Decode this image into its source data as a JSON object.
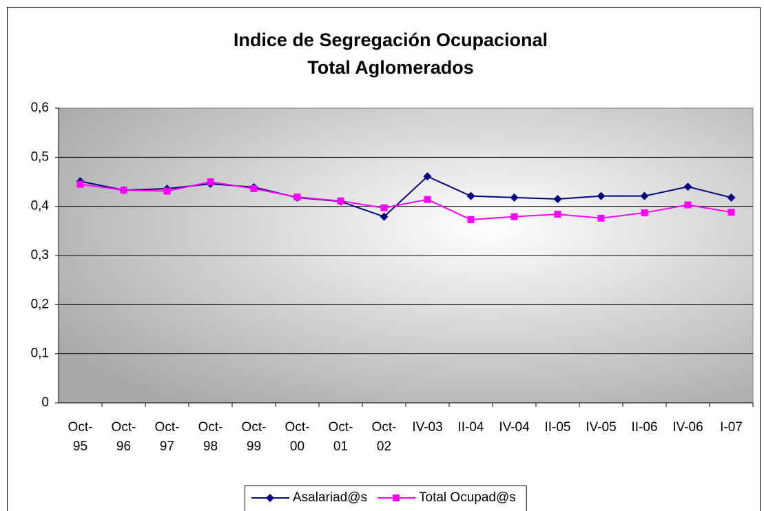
{
  "chart_data": {
    "type": "line",
    "title": "Indice de Segregación Ocupacional",
    "subtitle": "Total Aglomerados",
    "categories": [
      "Oct-95",
      "Oct-96",
      "Oct-97",
      "Oct-98",
      "Oct-99",
      "Oct-00",
      "Oct-01",
      "Oct-02",
      "IV-03",
      "II-04",
      "IV-04",
      "II-05",
      "IV-05",
      "II-06",
      "IV-06",
      "I-07"
    ],
    "series": [
      {
        "name": "Asalariad@s",
        "color": "#000080",
        "marker": "diamond",
        "values": [
          0.451,
          0.433,
          0.436,
          0.446,
          0.439,
          0.418,
          0.41,
          0.379,
          0.461,
          0.421,
          0.418,
          0.415,
          0.421,
          0.421,
          0.44,
          0.418
        ]
      },
      {
        "name": "Total Ocupad@s",
        "color": "#ff00ff",
        "marker": "square",
        "values": [
          0.445,
          0.433,
          0.431,
          0.45,
          0.436,
          0.419,
          0.411,
          0.397,
          0.414,
          0.373,
          0.379,
          0.384,
          0.376,
          0.387,
          0.403,
          0.388
        ]
      }
    ],
    "ylim": [
      0,
      0.6
    ],
    "yticks": [
      0,
      {
        "value": 0.1,
        "label": "0,1"
      },
      {
        "value": 0.2,
        "label": "0,2"
      },
      {
        "value": 0.3,
        "label": "0,3"
      },
      {
        "value": 0.4,
        "label": "0,4"
      },
      {
        "value": 0.5,
        "label": "0,5"
      },
      {
        "value": 0.6,
        "label": "0,6"
      }
    ],
    "grid": true,
    "legend": "bottom"
  }
}
